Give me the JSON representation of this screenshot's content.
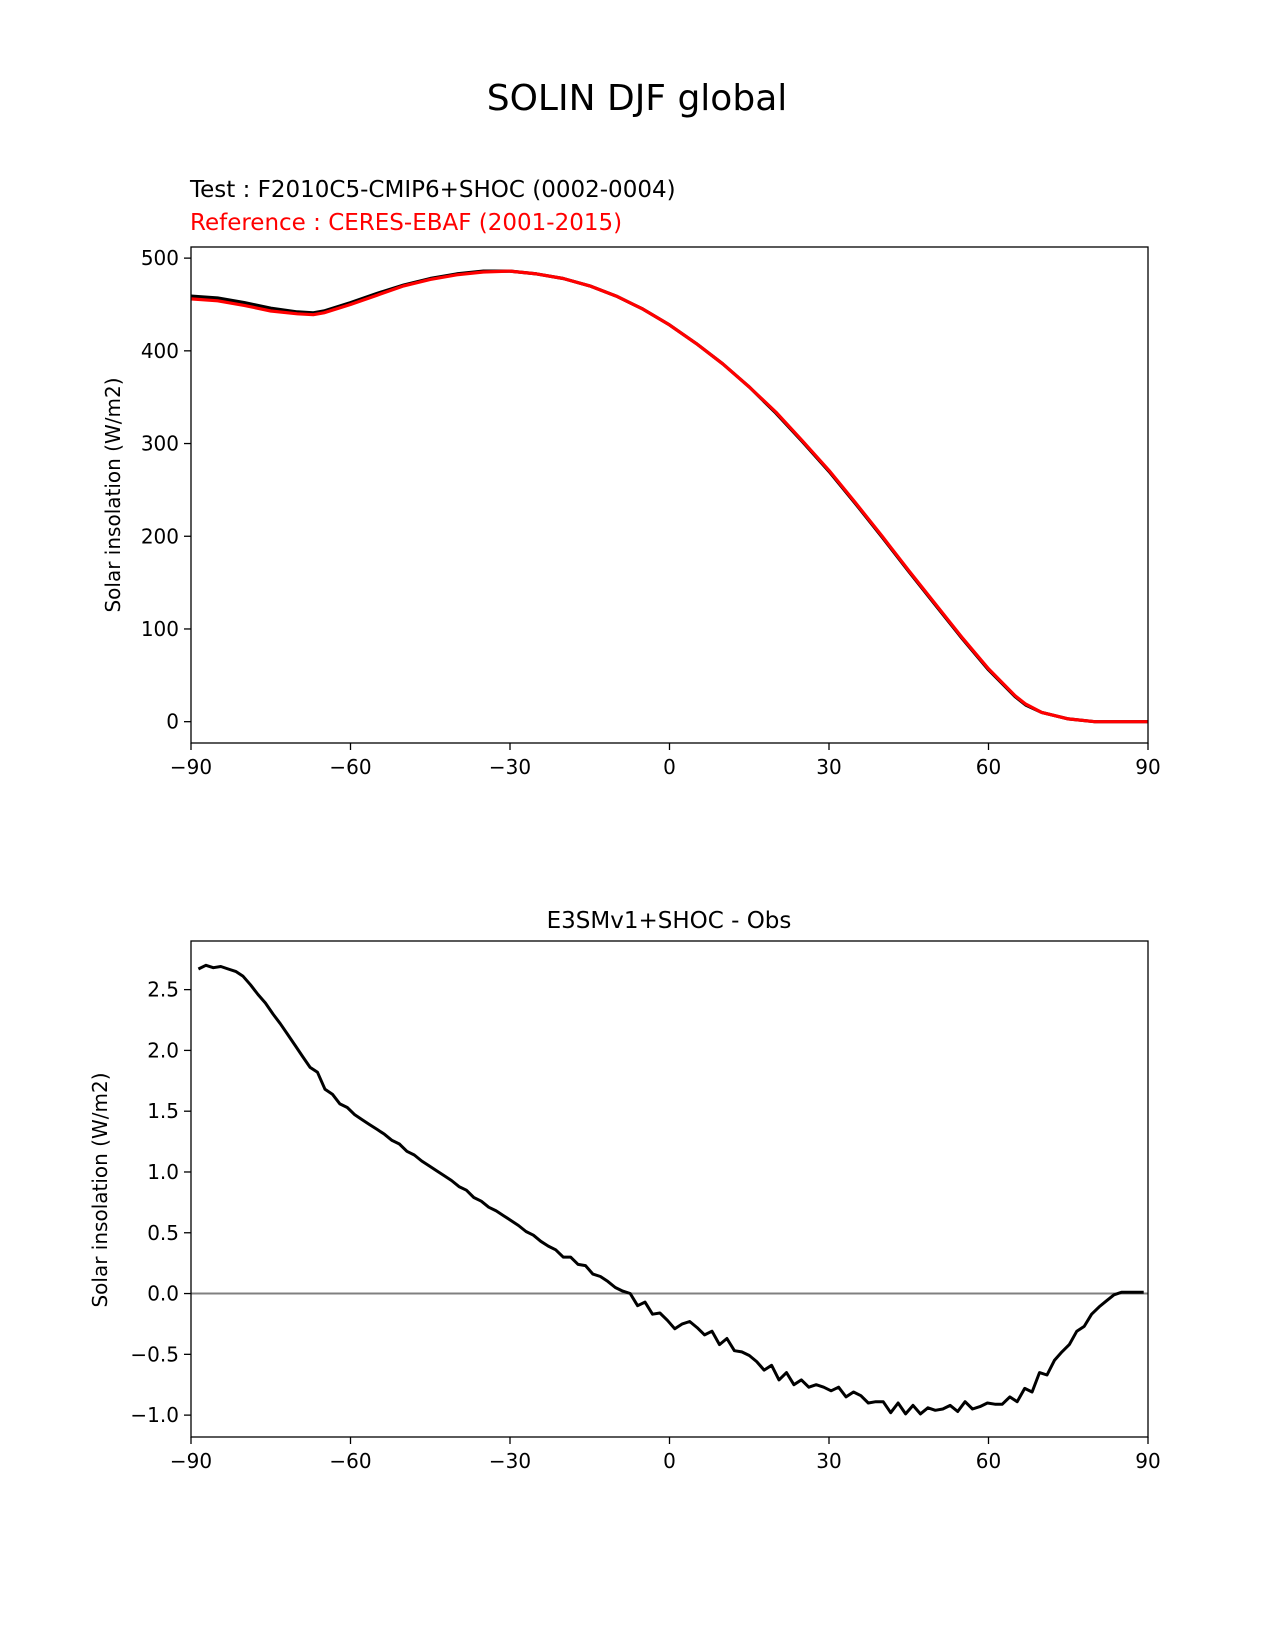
{
  "figure": {
    "title": "SOLIN DJF global"
  },
  "chart_data": [
    {
      "type": "line",
      "title_test": "Test : F2010C5-CMIP6+SHOC (0002-0004)",
      "title_reference": "Reference : CERES-EBAF (2001-2015)",
      "reference_color": "#ff0000",
      "test_color": "#000000",
      "xlabel": "",
      "ylabel": "Solar insolation (W/m2)",
      "xlim": [
        -90,
        90
      ],
      "ylim": [
        -23,
        512
      ],
      "xticks": [
        -90,
        -60,
        -30,
        0,
        30,
        60,
        90
      ],
      "xtick_labels": [
        "−90",
        "−60",
        "−30",
        "0",
        "30",
        "60",
        "90"
      ],
      "yticks": [
        0,
        100,
        200,
        300,
        400,
        500
      ],
      "ytick_labels": [
        "0",
        "100",
        "200",
        "300",
        "400",
        "500"
      ],
      "grid": false,
      "series": [
        {
          "role": "test",
          "x": [
            -90,
            -85,
            -80,
            -75,
            -70,
            -67,
            -65,
            -60,
            -55,
            -50,
            -45,
            -40,
            -35,
            -30,
            -25,
            -20,
            -15,
            -10,
            -5,
            0,
            5,
            10,
            15,
            20,
            25,
            30,
            35,
            40,
            45,
            50,
            55,
            60,
            65,
            67,
            70,
            75,
            80,
            85,
            90
          ],
          "y": [
            459,
            457,
            452,
            446,
            442,
            441,
            443,
            452,
            462,
            471,
            478,
            483,
            486,
            486,
            483,
            478,
            470,
            459,
            445,
            428,
            408,
            386,
            361,
            333,
            302,
            270,
            235,
            199,
            162,
            126,
            90,
            56,
            27,
            18,
            10,
            3,
            0,
            0,
            0
          ]
        },
        {
          "role": "reference",
          "x": [
            -90,
            -85,
            -80,
            -75,
            -70,
            -67,
            -65,
            -60,
            -55,
            -50,
            -45,
            -40,
            -35,
            -30,
            -25,
            -20,
            -15,
            -10,
            -5,
            0,
            5,
            10,
            15,
            20,
            25,
            30,
            35,
            40,
            45,
            50,
            55,
            60,
            65,
            67,
            70,
            75,
            80,
            85,
            90
          ],
          "y": [
            456,
            454,
            449,
            443,
            440,
            439,
            441,
            450,
            460,
            470,
            477,
            482,
            485,
            486,
            483,
            478,
            470,
            459,
            445,
            428,
            408,
            386,
            361,
            334,
            303,
            271,
            236,
            200,
            163,
            127,
            91,
            57,
            28,
            19,
            10,
            3,
            0,
            0,
            0
          ]
        }
      ]
    },
    {
      "type": "line",
      "title": "E3SMv1+SHOC - Obs",
      "xlabel": "",
      "ylabel": "Solar insolation (W/m2)",
      "xlim": [
        -90,
        90
      ],
      "ylim": [
        -1.18,
        2.9
      ],
      "xticks": [
        -90,
        -60,
        -30,
        0,
        30,
        60,
        90
      ],
      "xtick_labels": [
        "−90",
        "−60",
        "−30",
        "0",
        "30",
        "60",
        "90"
      ],
      "yticks": [
        -1.0,
        -0.5,
        0.0,
        0.5,
        1.0,
        1.5,
        2.0,
        2.5
      ],
      "ytick_labels": [
        "−1.0",
        "−0.5",
        "0.0",
        "0.5",
        "1.0",
        "1.5",
        "2.0",
        "2.5"
      ],
      "grid": false,
      "zero_line_color": "#808080",
      "series": [
        {
          "role": "difference",
          "x": [
            -88.6,
            -87.2,
            -85.8,
            -84.4,
            -83.0,
            -81.6,
            -80.2,
            -78.8,
            -77.4,
            -76.0,
            -74.6,
            -73.2,
            -71.8,
            -70.4,
            -69.0,
            -67.6,
            -66.2,
            -64.8,
            -63.4,
            -62.0,
            -60.6,
            -59.2,
            -57.8,
            -56.4,
            -55.0,
            -53.6,
            -52.2,
            -50.8,
            -49.4,
            -48.0,
            -46.6,
            -45.2,
            -43.8,
            -42.4,
            -41.0,
            -39.6,
            -38.2,
            -36.8,
            -35.4,
            -34.0,
            -32.6,
            -31.2,
            -29.8,
            -28.4,
            -27.0,
            -25.6,
            -24.2,
            -22.8,
            -21.4,
            -20.0,
            -18.6,
            -17.2,
            -15.8,
            -14.4,
            -13.0,
            -11.6,
            -10.2,
            -8.8,
            -7.4,
            -6.0,
            -4.6,
            -3.2,
            -1.8,
            -0.4,
            1.0,
            2.4,
            3.8,
            5.2,
            6.6,
            8.0,
            9.4,
            10.8,
            12.2,
            13.6,
            15.0,
            16.4,
            17.8,
            19.2,
            20.6,
            22.0,
            23.4,
            24.8,
            26.2,
            27.6,
            29.0,
            30.4,
            31.8,
            33.2,
            34.6,
            36.0,
            37.4,
            38.8,
            40.2,
            41.6,
            43.0,
            44.4,
            45.8,
            47.2,
            48.6,
            50.0,
            51.4,
            52.8,
            54.2,
            55.6,
            57.0,
            58.4,
            59.8,
            61.2,
            62.6,
            64.0,
            65.4,
            66.8,
            68.2,
            69.6,
            71.0,
            72.4,
            73.8,
            75.2,
            76.6,
            78.0,
            79.4,
            80.8,
            82.2,
            83.6,
            85.0,
            86.4,
            87.8,
            89.2
          ],
          "y": [
            2.67,
            2.7,
            2.68,
            2.69,
            2.67,
            2.65,
            2.61,
            2.54,
            2.46,
            2.39,
            2.3,
            2.22,
            2.13,
            2.04,
            1.95,
            1.86,
            1.82,
            1.68,
            1.64,
            1.56,
            1.53,
            1.47,
            1.43,
            1.39,
            1.35,
            1.31,
            1.26,
            1.23,
            1.17,
            1.14,
            1.09,
            1.05,
            1.01,
            0.97,
            0.93,
            0.88,
            0.85,
            0.79,
            0.76,
            0.71,
            0.68,
            0.64,
            0.6,
            0.56,
            0.51,
            0.48,
            0.43,
            0.39,
            0.36,
            0.3,
            0.3,
            0.24,
            0.23,
            0.16,
            0.14,
            0.1,
            0.05,
            0.02,
            0.0,
            -0.1,
            -0.07,
            -0.17,
            -0.16,
            -0.22,
            -0.29,
            -0.25,
            -0.23,
            -0.28,
            -0.34,
            -0.31,
            -0.42,
            -0.37,
            -0.47,
            -0.48,
            -0.51,
            -0.56,
            -0.63,
            -0.59,
            -0.71,
            -0.65,
            -0.75,
            -0.71,
            -0.77,
            -0.75,
            -0.77,
            -0.8,
            -0.77,
            -0.85,
            -0.81,
            -0.84,
            -0.9,
            -0.89,
            -0.89,
            -0.98,
            -0.9,
            -0.99,
            -0.92,
            -0.99,
            -0.94,
            -0.96,
            -0.95,
            -0.92,
            -0.97,
            -0.89,
            -0.95,
            -0.93,
            -0.9,
            -0.91,
            -0.91,
            -0.85,
            -0.89,
            -0.78,
            -0.81,
            -0.65,
            -0.67,
            -0.55,
            -0.48,
            -0.42,
            -0.31,
            -0.27,
            -0.17,
            -0.11,
            -0.06,
            -0.01,
            0.01,
            0.01,
            0.01,
            0.01
          ]
        }
      ]
    }
  ]
}
